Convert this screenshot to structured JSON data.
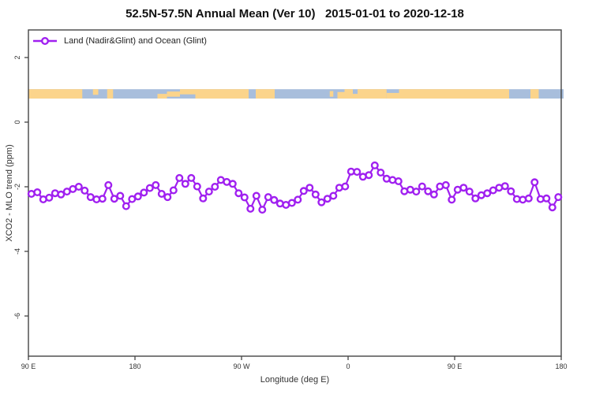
{
  "title": "52.5N-57.5N Annual Mean (Ver 10)   2015-01-01 to 2020-12-18",
  "legend": {
    "label": "Land (Nadir&Glint) and Ocean (Glint)"
  },
  "colors": {
    "series": "#A020F0",
    "marker_fill": "#FFFFFF",
    "land": "#FBD48B",
    "ocean": "#A8BEDC",
    "axis": "#454545",
    "text": "#333333"
  },
  "chart_data": {
    "type": "line",
    "title": "52.5N-57.5N Annual Mean (Ver 10)   2015-01-01 to 2020-12-18",
    "xlabel": "Longitude (deg E)",
    "ylabel": "XCO2 - MLO trend (ppm)",
    "xlim": [
      90,
      540
    ],
    "ylim": [
      -7.25,
      2.85
    ],
    "grid": false,
    "legend_position": "topleft",
    "x_ticks": [
      {
        "lon": 90,
        "label": "90 E"
      },
      {
        "lon": 180,
        "label": "180"
      },
      {
        "lon": 270,
        "label": "90 W"
      },
      {
        "lon": 360,
        "label": "0"
      },
      {
        "lon": 450,
        "label": "90 E"
      },
      {
        "lon": 540,
        "label": "180"
      }
    ],
    "y_ticks": [
      {
        "value": 2,
        "label": "2"
      },
      {
        "value": 0,
        "label": "0"
      },
      {
        "value": -2,
        "label": "-2"
      },
      {
        "value": -4,
        "label": "-4"
      },
      {
        "value": -6,
        "label": "-6"
      }
    ],
    "series": [
      {
        "name": "Land (Nadir&Glint) and Ocean (Glint)",
        "marker": "open-circle",
        "x_start_deg_east": 92.5,
        "x_step_deg": 5,
        "values": [
          -2.22,
          -2.17,
          -2.39,
          -2.34,
          -2.2,
          -2.24,
          -2.15,
          -2.07,
          -2.0,
          -2.12,
          -2.32,
          -2.39,
          -2.37,
          -1.95,
          -2.37,
          -2.28,
          -2.6,
          -2.38,
          -2.3,
          -2.18,
          -2.04,
          -1.95,
          -2.22,
          -2.32,
          -2.11,
          -1.73,
          -1.91,
          -1.73,
          -1.99,
          -2.36,
          -2.15,
          -2.0,
          -1.79,
          -1.85,
          -1.91,
          -2.2,
          -2.33,
          -2.68,
          -2.28,
          -2.71,
          -2.32,
          -2.41,
          -2.52,
          -2.56,
          -2.5,
          -2.4,
          -2.13,
          -2.03,
          -2.24,
          -2.48,
          -2.37,
          -2.28,
          -2.03,
          -1.99,
          -1.53,
          -1.54,
          -1.69,
          -1.64,
          -1.34,
          -1.56,
          -1.75,
          -1.79,
          -1.83,
          -2.14,
          -2.09,
          -2.15,
          -1.99,
          -2.14,
          -2.24,
          -1.99,
          -1.95,
          -2.4,
          -2.09,
          -2.03,
          -2.15,
          -2.36,
          -2.26,
          -2.2,
          -2.11,
          -2.03,
          -1.98,
          -2.14,
          -2.38,
          -2.4,
          -2.36,
          -1.86,
          -2.38,
          -2.36,
          -2.64,
          -2.32
        ]
      }
    ],
    "map_strip": {
      "description": "land/ocean map band at 52.5N-57.5N",
      "value_range": [
        0.73,
        1.02
      ],
      "lon_range": [
        90,
        542
      ],
      "land_segments": [
        {
          "from": 90,
          "to": 135.5,
          "top": 0,
          "bot": 1
        },
        {
          "from": 144.5,
          "to": 149,
          "top": 0,
          "bot": 0.6
        },
        {
          "from": 156.5,
          "to": 161.5,
          "top": 0,
          "bot": 1
        },
        {
          "from": 199,
          "to": 207,
          "top": 0.5,
          "bot": 1
        },
        {
          "from": 207,
          "to": 218,
          "top": 0.25,
          "bot": 0.8
        },
        {
          "from": 218,
          "to": 231,
          "top": 0,
          "bot": 0.55
        },
        {
          "from": 231,
          "to": 276,
          "top": 0,
          "bot": 1
        },
        {
          "from": 282,
          "to": 298,
          "top": 0,
          "bot": 1
        },
        {
          "from": 344.5,
          "to": 347.5,
          "top": 0.2,
          "bot": 0.8
        },
        {
          "from": 351,
          "to": 357,
          "top": 0.3,
          "bot": 1
        },
        {
          "from": 357,
          "to": 364,
          "top": 0,
          "bot": 1
        },
        {
          "from": 364,
          "to": 368,
          "top": 0.5,
          "bot": 1
        },
        {
          "from": 368,
          "to": 392.5,
          "top": 0,
          "bot": 1
        },
        {
          "from": 392.5,
          "to": 403,
          "top": 0.4,
          "bot": 1
        },
        {
          "from": 403,
          "to": 496,
          "top": 0,
          "bot": 1
        },
        {
          "from": 514,
          "to": 521,
          "top": 0,
          "bot": 1
        }
      ]
    }
  }
}
